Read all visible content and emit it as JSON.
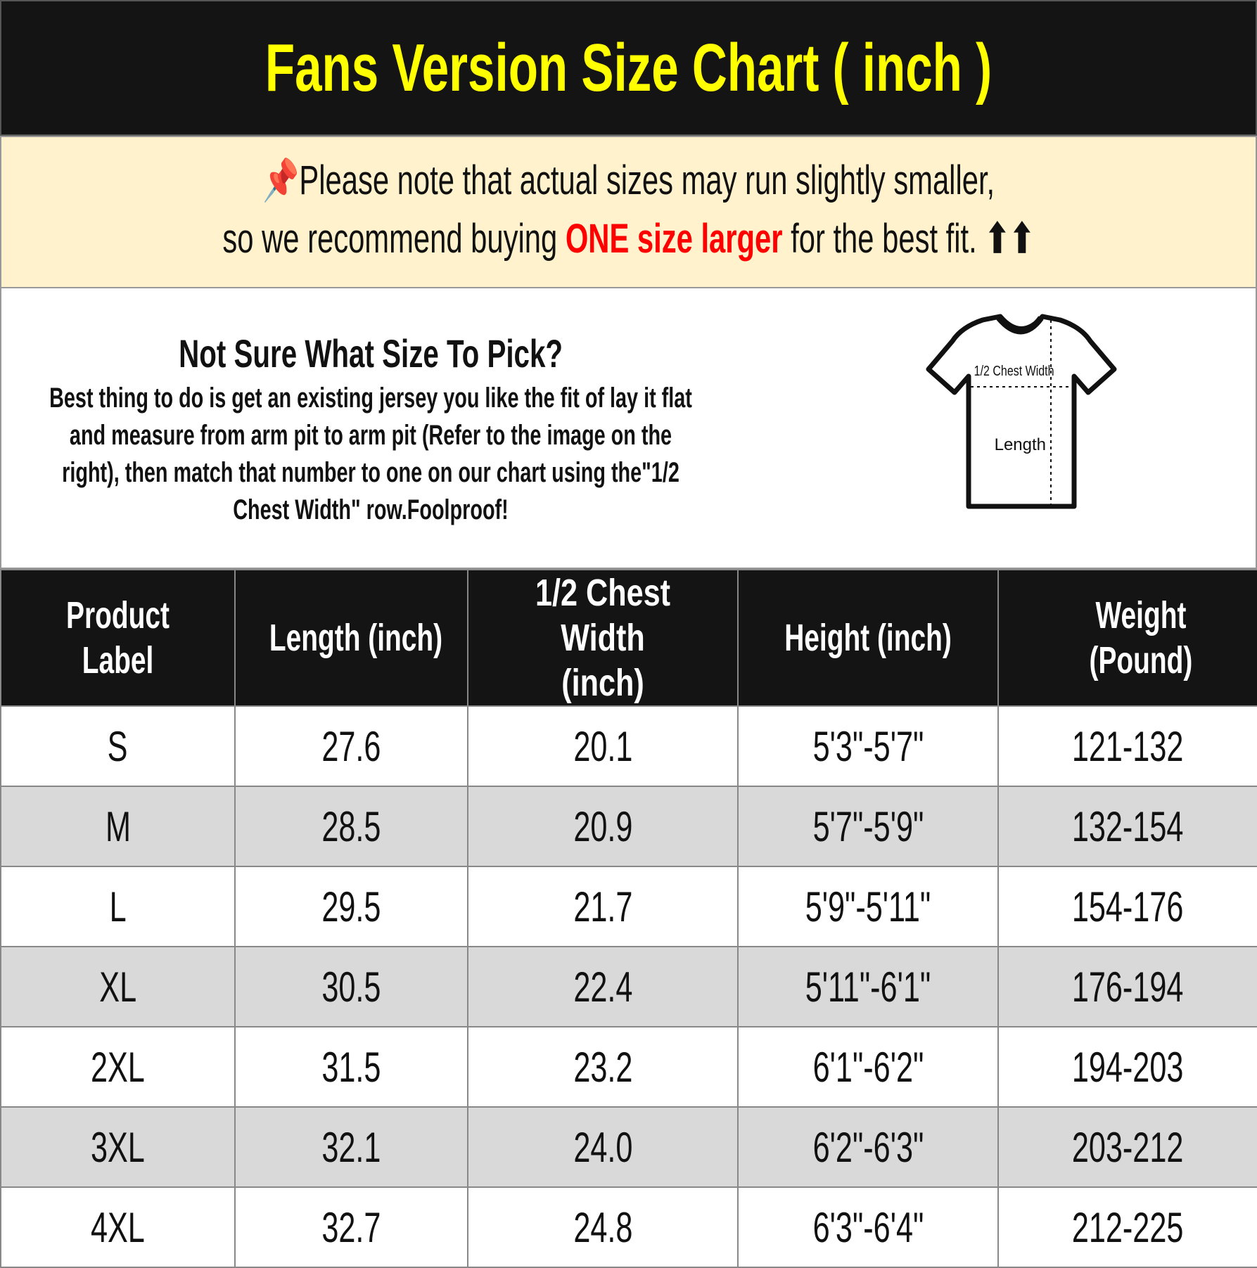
{
  "title": "Fans Version Size Chart ( inch )",
  "notice": {
    "icon": "pushpin-icon",
    "line1": "Please note that actual sizes may run slightly smaller,",
    "line2_pre": "so we recommend buying ",
    "line2_highlight": "ONE size larger",
    "line2_post": " for the best fit.",
    "arrows": "⬆⬆",
    "highlight_color": "#ff0000"
  },
  "info": {
    "question": "Not Sure What Size To Pick?",
    "body": "Best thing to do is get an existing jersey you like the fit of lay it flat and measure from arm pit to arm pit (Refer to the image on the right), then match that number to one on our chart using the\"1/2 Chest Width\" row.Foolproof!",
    "diagram": {
      "chest_label": "1/2 Chest Width",
      "length_label": "Length"
    }
  },
  "table": {
    "headers": [
      "Product Label",
      "Length (inch)",
      "1/2 Chest Width (inch)",
      "Height (inch)",
      "Weight (Pound)"
    ],
    "rows": [
      [
        "S",
        "27.6",
        "20.1",
        "5'3\"-5'7\"",
        "121-132"
      ],
      [
        "M",
        "28.5",
        "20.9",
        "5'7\"-5'9\"",
        "132-154"
      ],
      [
        "L",
        "29.5",
        "21.7",
        "5'9\"-5'11\"",
        "154-176"
      ],
      [
        "XL",
        "30.5",
        "22.4",
        "5'11\"-6'1\"",
        "176-194"
      ],
      [
        "2XL",
        "31.5",
        "23.2",
        "6'1\"-6'2\"",
        "194-203"
      ],
      [
        "3XL",
        "32.1",
        "24.0",
        "6'2\"-6'3\"",
        "203-212"
      ],
      [
        "4XL",
        "32.7",
        "24.8",
        "6'3\"-6'4\"",
        "212-225"
      ]
    ]
  },
  "colors": {
    "header_bg": "#141414",
    "title": "#ffff00",
    "notice_bg": "#fff2cc",
    "alt_row": "#d9d9d9"
  }
}
